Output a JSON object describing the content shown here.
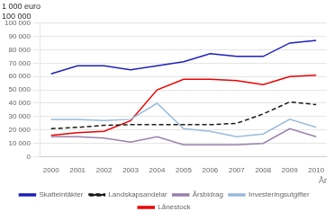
{
  "chart_data": {
    "type": "line",
    "ylabel": "1 000 euro",
    "annotations": [
      "100 000"
    ],
    "xlabel": "År",
    "x": [
      2000,
      2001,
      2002,
      2003,
      2004,
      2005,
      2006,
      2007,
      2008,
      2009,
      2010
    ],
    "series": [
      {
        "name": "Skatteintäkter",
        "color": "#1F1FBB",
        "line_style": "solid",
        "values": [
          62000,
          68000,
          68000,
          65000,
          68000,
          71000,
          77000,
          75000,
          75000,
          85000,
          87000
        ]
      },
      {
        "name": "Landskapsandelar",
        "color": "#1A1A1A",
        "line_style": "dashed",
        "values": [
          21000,
          22000,
          23500,
          24000,
          24000,
          24000,
          24000,
          25000,
          32000,
          41000,
          39000
        ]
      },
      {
        "name": "Årsbidrag",
        "color": "#9980AA",
        "line_style": "solid",
        "values": [
          15000,
          15000,
          14000,
          11000,
          15000,
          9000,
          9000,
          9000,
          10000,
          21000,
          15000
        ]
      },
      {
        "name": "Investeringsutgifter",
        "color": "#99BBDD",
        "line_style": "solid",
        "values": [
          28000,
          28000,
          27000,
          28000,
          40000,
          21000,
          19000,
          15000,
          17000,
          28000,
          22000
        ]
      },
      {
        "name": "Lånestock",
        "color": "#EE0000",
        "line_style": "solid",
        "values": [
          16000,
          18000,
          19000,
          27000,
          50000,
          58000,
          58000,
          57000,
          54000,
          60000,
          61000
        ]
      }
    ],
    "xlim": [
      1999.6,
      2010.4
    ],
    "xticks": [
      2000,
      2001,
      2002,
      2003,
      2004,
      2005,
      2006,
      2007,
      2008,
      2009,
      2010
    ],
    "ylim": [
      0,
      100000
    ],
    "yticks": [
      0,
      {
        "value": 10000,
        "label": "10 000"
      },
      {
        "value": 20000,
        "label": "20 000"
      },
      {
        "value": 30000,
        "label": "30 000"
      },
      {
        "value": 40000,
        "label": "40 000"
      },
      {
        "value": 50000,
        "label": "50 000"
      },
      {
        "value": 60000,
        "label": "60 000"
      },
      {
        "value": 70000,
        "label": "70 000"
      },
      {
        "value": 80000,
        "label": "80 000"
      },
      {
        "value": 90000,
        "label": "90 000"
      },
      {
        "value": 100000,
        "label": "100 000"
      }
    ],
    "grid": "y",
    "legend": "bottom"
  }
}
